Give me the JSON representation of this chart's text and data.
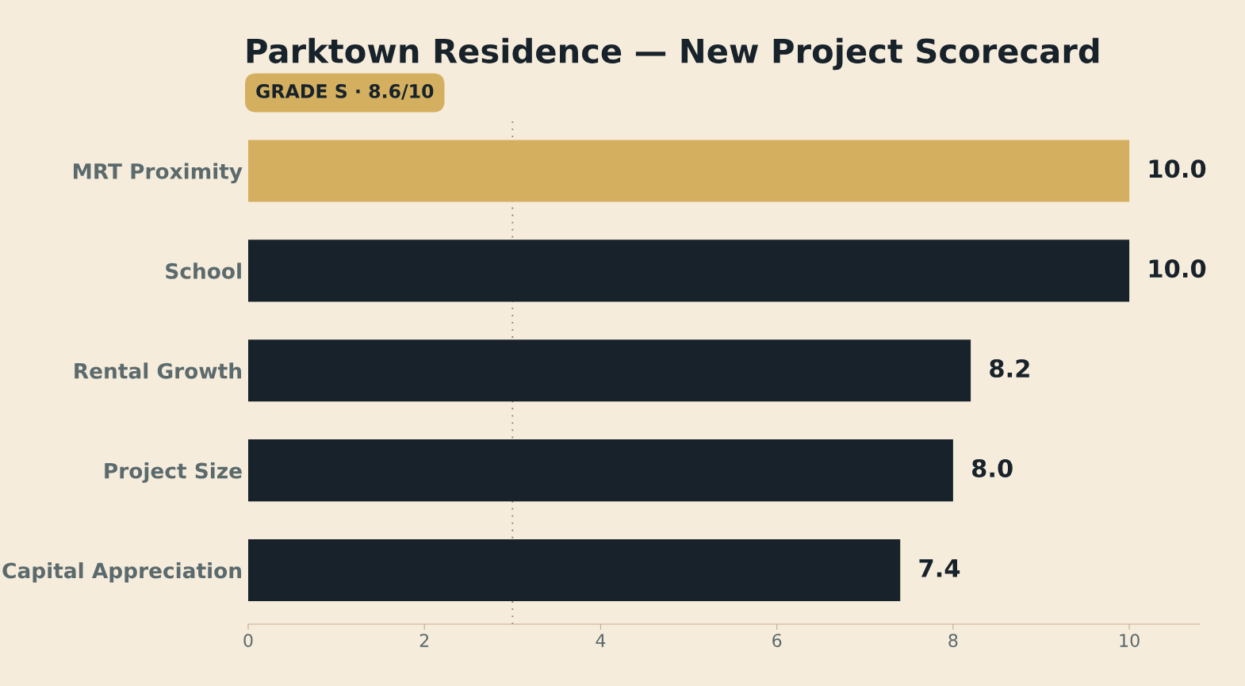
{
  "chart_data": {
    "type": "bar",
    "orientation": "horizontal",
    "title": "Parktown Residence — New Project Scorecard",
    "subtitle": "GRADE S · 8.6/10",
    "categories": [
      "MRT Proximity",
      "School",
      "Rental Growth",
      "Project Size",
      "Capital Appreciation"
    ],
    "values": [
      10.0,
      10.0,
      8.2,
      8.0,
      7.4
    ],
    "colors": [
      "#d4af5f",
      "#17222a",
      "#17222a",
      "#17222a",
      "#17222a"
    ],
    "value_labels": [
      "10.0",
      "10.0",
      "8.2",
      "8.0",
      "7.4"
    ],
    "xlim": [
      0,
      10.8
    ],
    "xticks": [
      0,
      2,
      4,
      6,
      8,
      10
    ],
    "ref_lines": [
      {
        "axis": "x",
        "value": 3,
        "label": null,
        "color": "#8a7a6a",
        "line_style": "dotted"
      }
    ],
    "grid": false,
    "legend": false
  }
}
